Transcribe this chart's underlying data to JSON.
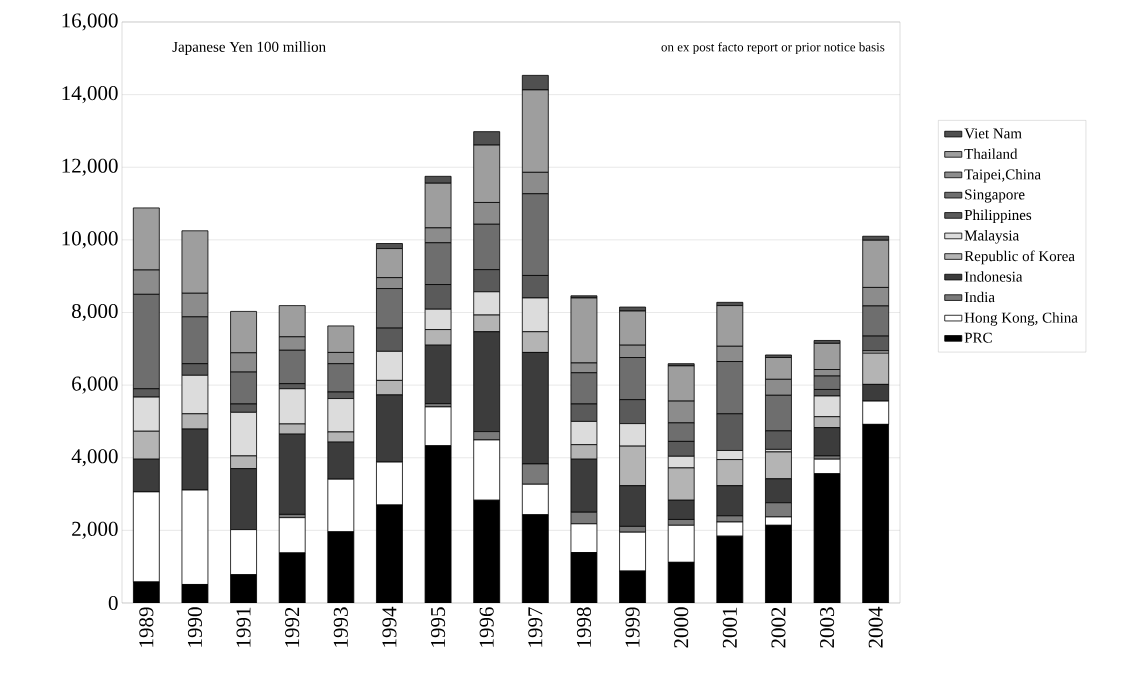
{
  "chart_data": {
    "type": "bar",
    "stacked": true,
    "categories": [
      "1989",
      "1990",
      "1991",
      "1992",
      "1993",
      "1994",
      "1995",
      "1996",
      "1997",
      "1998",
      "1999",
      "2000",
      "2001",
      "2002",
      "2003",
      "2004"
    ],
    "series": [
      {
        "name": "PRC",
        "color": "#000000",
        "values": [
          580,
          510,
          780,
          1380,
          1960,
          2700,
          4330,
          2830,
          2430,
          1390,
          880,
          1120,
          1840,
          2140,
          3560,
          4920
        ]
      },
      {
        "name": "Hong Kong, China",
        "color": "#ffffff",
        "values": [
          2480,
          2600,
          1240,
          970,
          1450,
          1180,
          1070,
          1660,
          840,
          790,
          1070,
          1020,
          390,
          230,
          400,
          640
        ]
      },
      {
        "name": "India",
        "color": "#7a7a7a",
        "values": [
          0,
          0,
          0,
          90,
          0,
          null,
          90,
          230,
          560,
          320,
          160,
          160,
          170,
          390,
          90,
          0
        ]
      },
      {
        "name": "Indonesia",
        "color": "#3c3c3c",
        "values": [
          900,
          1680,
          1680,
          2210,
          1020,
          1850,
          1610,
          2750,
          3070,
          1460,
          1120,
          530,
          830,
          660,
          780,
          460
        ]
      },
      {
        "name": "Republic of Korea",
        "color": "#b4b4b4",
        "values": [
          770,
          420,
          350,
          280,
          280,
          400,
          430,
          460,
          570,
          400,
          1090,
          890,
          720,
          740,
          300,
          860
        ]
      },
      {
        "name": "Malaysia",
        "color": "#dcdcdc",
        "values": [
          940,
          1060,
          1200,
          970,
          920,
          800,
          560,
          640,
          930,
          640,
          620,
          320,
          250,
          70,
          570,
          60
        ]
      },
      {
        "name": "Philippines",
        "color": "#5a5a5a",
        "values": [
          230,
          320,
          230,
          140,
          180,
          640,
          680,
          610,
          620,
          480,
          660,
          410,
          1010,
          510,
          180,
          410
        ]
      },
      {
        "name": "Singapore",
        "color": "#6e6e6e",
        "values": [
          2600,
          1290,
          880,
          920,
          780,
          1090,
          1150,
          1250,
          2250,
          860,
          1160,
          510,
          1440,
          980,
          370,
          830
        ]
      },
      {
        "name": "Taipei,China",
        "color": "#8c8c8c",
        "values": [
          670,
          650,
          530,
          370,
          310,
          300,
          410,
          600,
          590,
          270,
          340,
          600,
          420,
          440,
          180,
          510
        ]
      },
      {
        "name": "Thailand",
        "color": "#9e9e9e",
        "values": [
          1710,
          1720,
          1140,
          860,
          730,
          800,
          1230,
          1580,
          2270,
          1790,
          940,
          970,
          1120,
          600,
          720,
          1300
        ]
      },
      {
        "name": "Viet Nam",
        "color": "#505050",
        "values": [
          0,
          0,
          0,
          0,
          0,
          140,
          190,
          370,
          400,
          60,
          110,
          60,
          90,
          70,
          80,
          110
        ]
      }
    ],
    "ylim": [
      0,
      16000
    ],
    "yticks": [
      {
        "value": 0,
        "label": "0"
      },
      {
        "value": 2000,
        "label": "2,000"
      },
      {
        "value": 4000,
        "label": "4,000"
      },
      {
        "value": 6000,
        "label": "6,000"
      },
      {
        "value": 8000,
        "label": "8,000"
      },
      {
        "value": 10000,
        "label": "10,000"
      },
      {
        "value": 12000,
        "label": "12,000"
      },
      {
        "value": 14000,
        "label": "14,000"
      },
      {
        "value": 16000,
        "label": "16,000"
      }
    ],
    "grid": "y",
    "legend": "right",
    "annotations": [
      "Japanese Yen 100 million",
      "on ex post facto report or prior notice basis"
    ]
  }
}
